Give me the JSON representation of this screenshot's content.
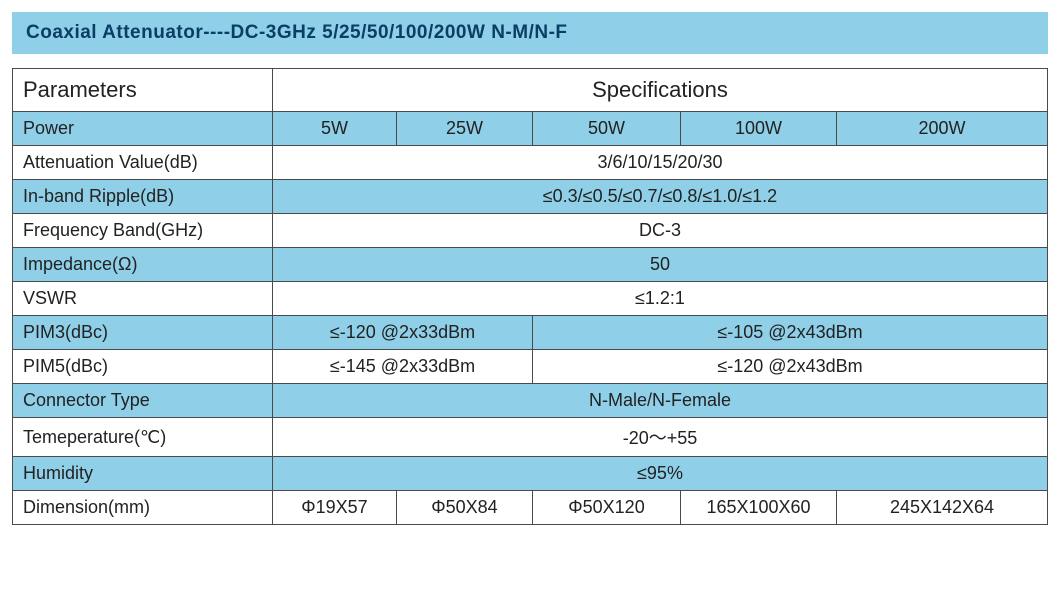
{
  "colors": {
    "title_bg": "#8fcfe8",
    "title_text": "#0a3e66",
    "border": "#4a4a4a",
    "row_blue": "#8fcfe8",
    "row_white": "#ffffff",
    "text": "#222222"
  },
  "fonts": {
    "title_size": "19px",
    "header_size": "22px",
    "cell_size": "18px"
  },
  "title": "Coaxial Attenuator----DC-3GHz 5/25/50/100/200W N-M/N-F",
  "table": {
    "header": {
      "parameters": "Parameters",
      "specifications": "Specifications"
    },
    "col_widths": [
      "260px",
      "124px",
      "136px",
      "148px",
      "156px",
      "auto"
    ],
    "rows": [
      {
        "type": "multi",
        "bg": "blue",
        "label": "Power",
        "cells": [
          "5W",
          "25W",
          "50W",
          "100W",
          "200W"
        ]
      },
      {
        "type": "single",
        "bg": "white",
        "label": "Attenuation Value(dB)",
        "value": "3/6/10/15/20/30"
      },
      {
        "type": "single",
        "bg": "blue",
        "label": "In-band Ripple(dB)",
        "value": "≤0.3/≤0.5/≤0.7/≤0.8/≤1.0/≤1.2"
      },
      {
        "type": "single",
        "bg": "white",
        "label": "Frequency Band(GHz)",
        "value": "DC-3"
      },
      {
        "type": "single",
        "bg": "blue",
        "label": "Impedance(Ω)",
        "value": "50"
      },
      {
        "type": "single",
        "bg": "white",
        "label": "VSWR",
        "value": "≤1.2:1"
      },
      {
        "type": "split",
        "bg": "blue",
        "label": "PIM3(dBc)",
        "left": "≤-120 @2x33dBm",
        "right": "≤-105 @2x43dBm"
      },
      {
        "type": "split",
        "bg": "white",
        "label": "PIM5(dBc)",
        "left": "≤-145 @2x33dBm",
        "right": "≤-120 @2x43dBm"
      },
      {
        "type": "single",
        "bg": "blue",
        "label": "Connector Type",
        "value": "N-Male/N-Female"
      },
      {
        "type": "single",
        "bg": "white",
        "label": "Temeperature(℃)",
        "value": "-20～+55"
      },
      {
        "type": "single",
        "bg": "blue",
        "label": "Humidity",
        "value": "≤95%"
      },
      {
        "type": "multi",
        "bg": "white",
        "label": "Dimension(mm)",
        "cells": [
          "Φ19X57",
          "Φ50X84",
          "Φ50X120",
          "165X100X60",
          "245X142X64"
        ]
      }
    ]
  }
}
